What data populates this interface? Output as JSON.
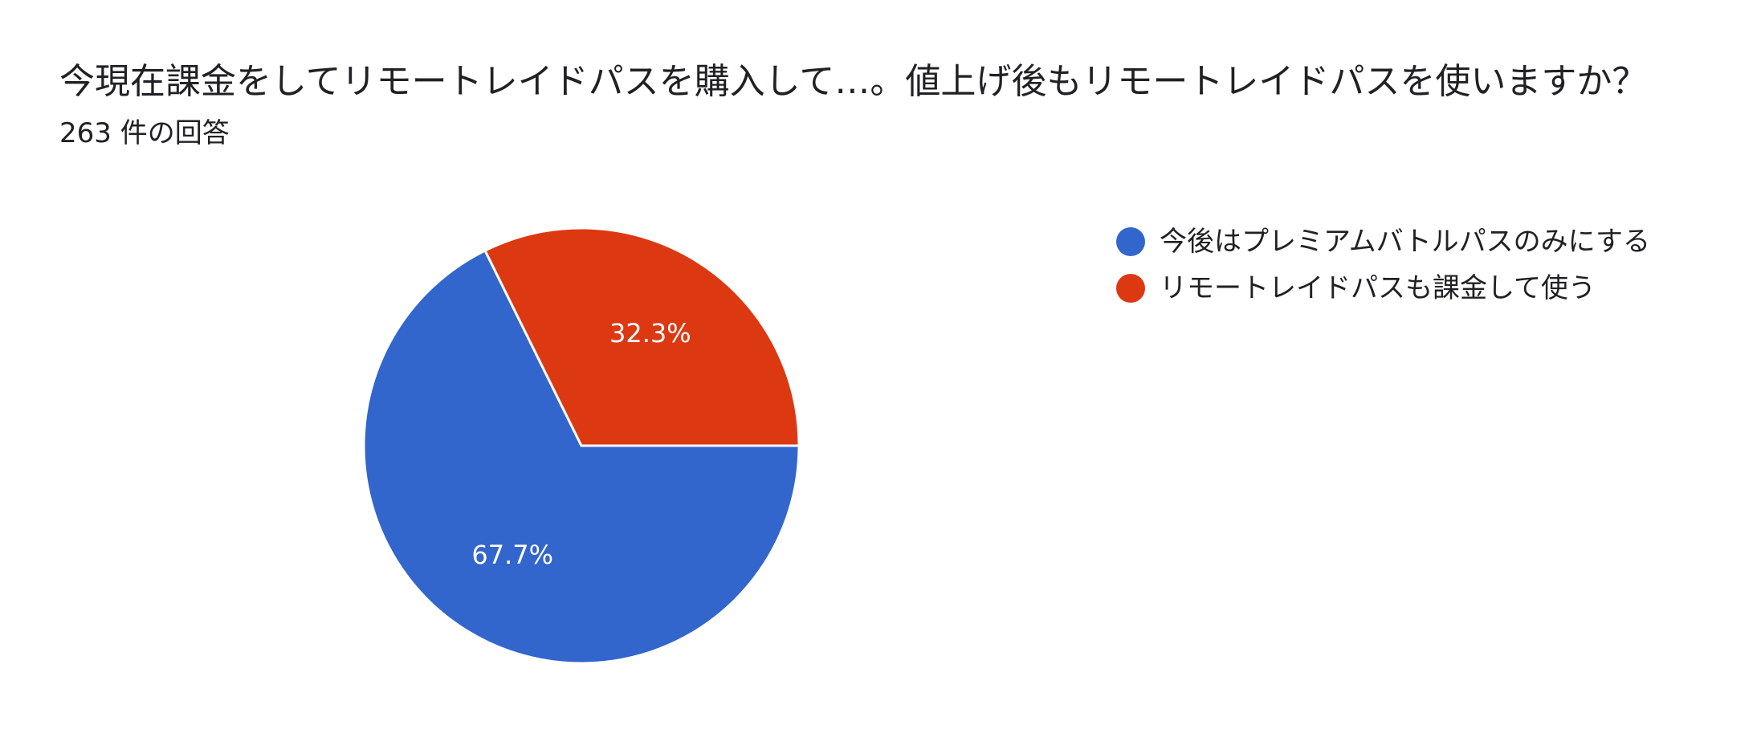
{
  "header": {
    "title": "今現在課金をしてリモートレイドパスを購入して…。値上げ後もリモートレイドパスを使いますか？",
    "subtitle": "263 件の回答"
  },
  "chart_data": {
    "type": "pie",
    "title": "今現在課金をしてリモートレイドパスを購入して…。値上げ後もリモートレイドパスを使いますか？",
    "subtitle": "263 件の回答",
    "categories": [
      "今後はプレミアムバトルパスのみにする",
      "リモートレイドパスも課金して使う"
    ],
    "values": [
      67.7,
      32.3
    ],
    "value_labels": [
      "67.7%",
      "32.3%"
    ],
    "colors": [
      "#3366cc",
      "#dc3912"
    ],
    "legend_position": "right"
  }
}
